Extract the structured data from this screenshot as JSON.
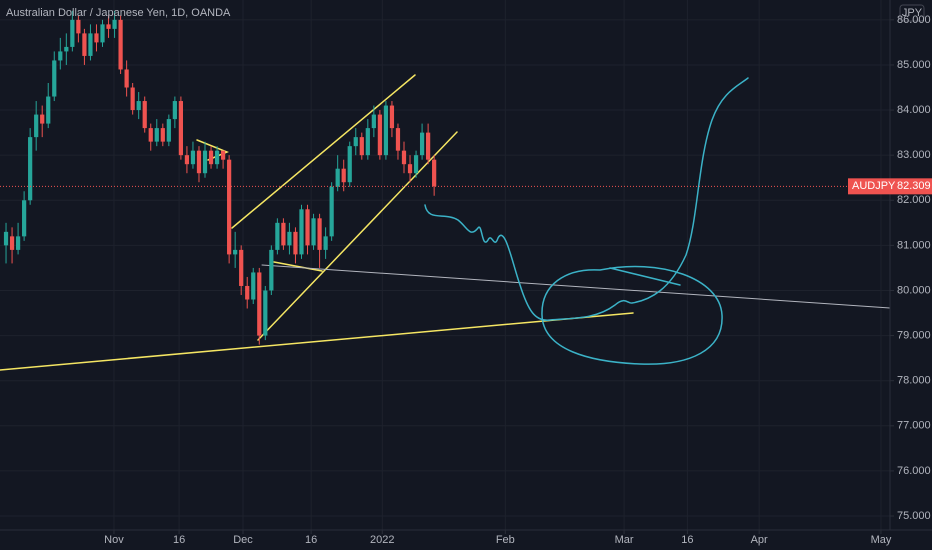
{
  "chart_data": {
    "type": "candlestick",
    "title": "Australian Dollar / Japanese Yen, 1D, OANDA",
    "symbol": "AUDJPY",
    "currency": "JPY",
    "up_color": "#26a69a",
    "down_color": "#ef5350",
    "open": [
      81.0,
      81.2,
      80.9,
      81.2,
      82.0,
      83.4,
      83.9,
      83.7,
      84.3,
      85.1,
      85.3,
      85.4,
      86.0,
      85.7,
      85.2,
      85.7,
      85.5,
      85.9,
      85.8,
      86.0,
      84.9,
      84.5,
      84.0,
      84.2,
      83.6,
      83.3,
      83.6,
      83.3,
      83.8,
      84.2,
      83.0,
      82.8,
      83.1,
      82.6,
      83.1,
      82.8,
      83.1,
      82.9,
      80.8,
      80.9,
      80.1,
      79.8,
      80.4,
      79.0,
      80.0,
      80.9,
      81.5,
      81.0,
      81.3,
      80.8,
      81.8,
      81.0,
      81.6,
      80.9,
      81.2,
      82.3,
      82.7,
      82.4,
      83.2,
      83.4,
      83.0,
      83.6,
      83.9,
      83.0,
      84.1,
      83.6,
      83.1,
      82.8,
      82.6,
      83.0,
      83.5,
      82.9
    ],
    "high": [
      81.5,
      81.4,
      81.5,
      82.2,
      83.6,
      84.2,
      84.1,
      84.6,
      85.3,
      85.6,
      85.7,
      86.2,
      86.1,
      85.8,
      85.9,
      85.9,
      86.0,
      86.1,
      86.2,
      86.1,
      85.1,
      84.6,
      84.4,
      84.3,
      83.7,
      83.8,
      83.7,
      83.9,
      84.3,
      84.3,
      83.2,
      83.3,
      83.2,
      83.3,
      83.2,
      83.2,
      83.1,
      83.0,
      81.3,
      81.0,
      80.3,
      80.5,
      80.5,
      80.1,
      81.0,
      81.6,
      81.6,
      81.5,
      81.4,
      81.9,
      81.9,
      81.7,
      81.7,
      81.4,
      82.4,
      83.0,
      82.9,
      83.3,
      83.6,
      83.5,
      83.8,
      84.1,
      84.0,
      84.2,
      84.2,
      83.7,
      83.3,
      83.0,
      83.1,
      83.7,
      83.7,
      83.0
    ],
    "low": [
      80.6,
      80.6,
      80.8,
      81.1,
      81.9,
      83.1,
      83.4,
      83.6,
      84.2,
      84.9,
      85.0,
      85.3,
      85.5,
      85.0,
      85.1,
      85.3,
      85.4,
      85.6,
      85.6,
      84.8,
      84.3,
      83.9,
      83.8,
      83.5,
      83.1,
      83.2,
      83.2,
      83.2,
      83.6,
      82.9,
      82.6,
      82.7,
      82.4,
      82.5,
      82.7,
      82.7,
      82.7,
      80.6,
      80.5,
      79.9,
      79.6,
      79.7,
      78.8,
      78.9,
      79.9,
      80.8,
      80.9,
      80.8,
      80.6,
      80.7,
      80.8,
      80.9,
      80.5,
      80.7,
      81.1,
      82.2,
      82.2,
      82.3,
      83.0,
      82.9,
      82.9,
      83.4,
      82.9,
      82.9,
      83.4,
      82.9,
      82.6,
      82.4,
      82.5,
      82.9,
      82.8,
      82.1
    ],
    "close": [
      81.3,
      80.9,
      81.2,
      82.0,
      83.4,
      83.9,
      83.7,
      84.3,
      85.1,
      85.3,
      85.4,
      86.0,
      85.7,
      85.2,
      85.7,
      85.5,
      85.9,
      85.8,
      86.0,
      84.9,
      84.5,
      84.0,
      84.2,
      83.6,
      83.3,
      83.6,
      83.3,
      83.8,
      84.2,
      83.0,
      82.8,
      83.1,
      82.6,
      83.1,
      82.8,
      83.1,
      82.9,
      80.8,
      80.9,
      80.1,
      79.8,
      80.4,
      79.0,
      80.0,
      80.9,
      81.5,
      81.0,
      81.3,
      80.8,
      81.8,
      81.0,
      81.6,
      80.9,
      81.2,
      82.3,
      82.7,
      82.4,
      83.2,
      83.4,
      83.0,
      83.6,
      83.9,
      83.0,
      84.1,
      83.6,
      83.1,
      82.8,
      82.6,
      83.0,
      83.5,
      82.9,
      82.309
    ],
    "last_close_label": "82.309",
    "xlim": [
      -1.0,
      146.6
    ],
    "xticks": [
      {
        "value": 17.9,
        "label": "Nov"
      },
      {
        "value": 28.7,
        "label": "16"
      },
      {
        "value": 39.3,
        "label": "Dec"
      },
      {
        "value": 50.6,
        "label": "16"
      },
      {
        "value": 62.4,
        "label": "2022"
      },
      {
        "value": 82.8,
        "label": "Feb"
      },
      {
        "value": 102.5,
        "label": "Mar"
      },
      {
        "value": 113,
        "label": "16"
      },
      {
        "value": 124.9,
        "label": "Apr"
      },
      {
        "value": 145.1,
        "label": "May"
      }
    ],
    "ylim": [
      74.69,
      86.44
    ],
    "yticks": [
      {
        "value": 75,
        "label": "75.000"
      },
      {
        "value": 76,
        "label": "76.000"
      },
      {
        "value": 77,
        "label": "77.000"
      },
      {
        "value": 78,
        "label": "78.000"
      },
      {
        "value": 79,
        "label": "79.000"
      },
      {
        "value": 80,
        "label": "80.000"
      },
      {
        "value": 81,
        "label": "81.000"
      },
      {
        "value": 82,
        "label": "82.000"
      },
      {
        "value": 83,
        "label": "83.000"
      },
      {
        "value": 84,
        "label": "84.000"
      },
      {
        "value": 85,
        "label": "85.000"
      },
      {
        "value": 86,
        "label": "86.000"
      }
    ],
    "grid": true
  }
}
